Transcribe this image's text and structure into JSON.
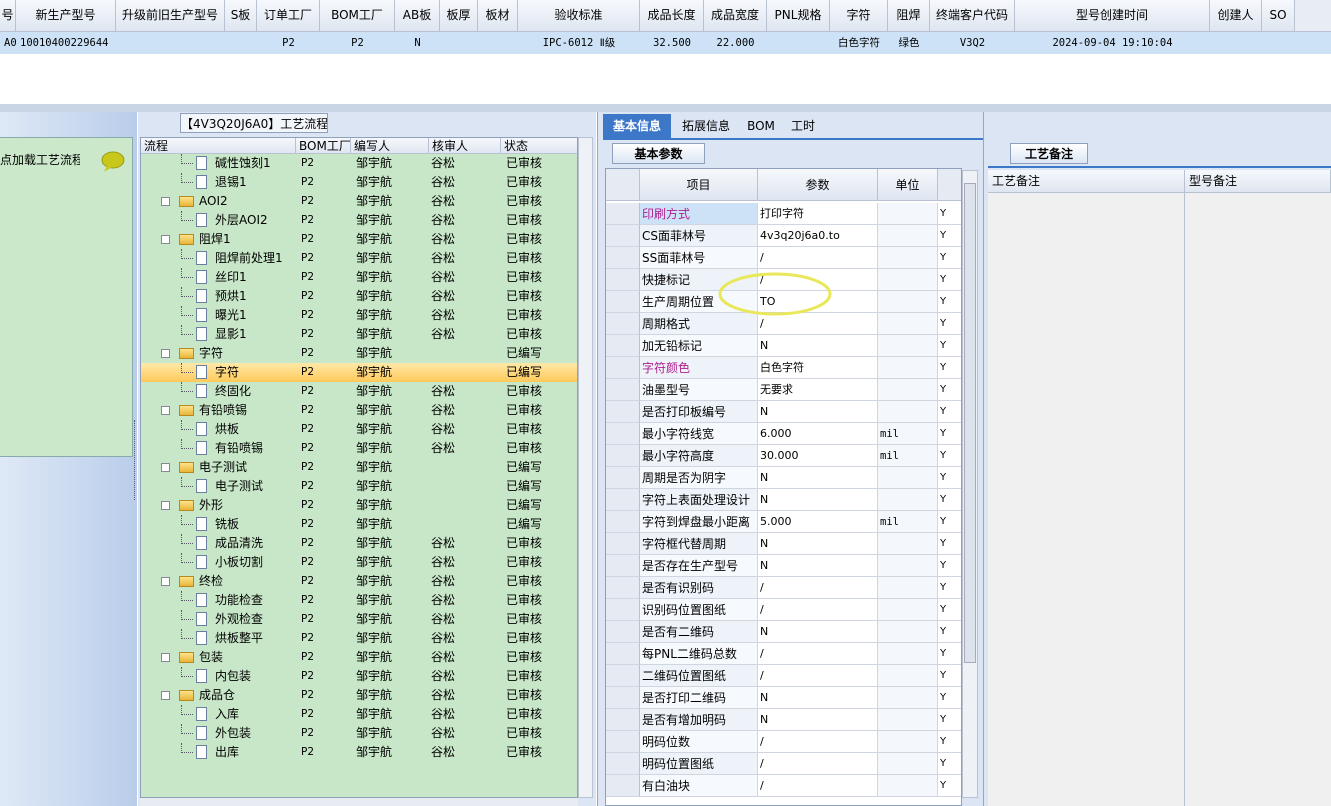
{
  "top_table": {
    "headers": [
      "号",
      "新生产型号",
      "升级前旧生产型号",
      "S板",
      "订单工厂",
      "BOM工厂",
      "AB板",
      "板厚",
      "板材",
      "验收标准",
      "成品长度",
      "成品宽度",
      "PNL规格",
      "字符",
      "阻焊",
      "终端客户代码",
      "型号创建时间",
      "创建人",
      "SO"
    ],
    "row": [
      "A0",
      "10010400229644",
      null,
      null,
      "P2",
      "P2",
      "N",
      null,
      null,
      "IPC-6012 Ⅱ级",
      "32.500",
      "22.000",
      null,
      "白色字符",
      "绿色",
      "V3Q2",
      "2024-09-04 19:10:04",
      null,
      null
    ]
  },
  "left_panel": {
    "title": "点加载工艺流程"
  },
  "process": {
    "title": "【4V3Q20J6A0】工艺流程",
    "headers": [
      "流程",
      "BOM工厂",
      "编写人",
      "核审人",
      "状态"
    ],
    "rows": [
      {
        "name": "碱性蚀刻1",
        "bom": "P2",
        "writer": "邹宇航",
        "reviewer": "谷松",
        "status": "已审核"
      },
      {
        "name": "退锡1",
        "bom": "P2",
        "writer": "邹宇航",
        "reviewer": "谷松",
        "status": "已审核"
      },
      {
        "name": "AOI2",
        "folder": true,
        "bom": "P2",
        "writer": "邹宇航",
        "reviewer": "谷松",
        "status": "已审核"
      },
      {
        "name": "外层AOI2",
        "bom": "P2",
        "writer": "邹宇航",
        "reviewer": "谷松",
        "status": "已审核"
      },
      {
        "name": "阻焊1",
        "folder": true,
        "bom": "P2",
        "writer": "邹宇航",
        "reviewer": "谷松",
        "status": "已审核"
      },
      {
        "name": "阻焊前处理1",
        "bom": "P2",
        "writer": "邹宇航",
        "reviewer": "谷松",
        "status": "已审核"
      },
      {
        "name": "丝印1",
        "bom": "P2",
        "writer": "邹宇航",
        "reviewer": "谷松",
        "status": "已审核"
      },
      {
        "name": "预烘1",
        "bom": "P2",
        "writer": "邹宇航",
        "reviewer": "谷松",
        "status": "已审核"
      },
      {
        "name": "曝光1",
        "bom": "P2",
        "writer": "邹宇航",
        "reviewer": "谷松",
        "status": "已审核"
      },
      {
        "name": "显影1",
        "bom": "P2",
        "writer": "邹宇航",
        "reviewer": "谷松",
        "status": "已审核"
      },
      {
        "name": "字符",
        "folder": true,
        "bom": "P2",
        "writer": "邹宇航",
        "status": "已编写"
      },
      {
        "name": "字符",
        "selected": true,
        "bom": "P2",
        "writer": "邹宇航",
        "status": "已编写"
      },
      {
        "name": "终固化",
        "bom": "P2",
        "writer": "邹宇航",
        "reviewer": "谷松",
        "status": "已审核"
      },
      {
        "name": "有铅喷锡",
        "folder": true,
        "bom": "P2",
        "writer": "邹宇航",
        "reviewer": "谷松",
        "status": "已审核"
      },
      {
        "name": "烘板",
        "bom": "P2",
        "writer": "邹宇航",
        "reviewer": "谷松",
        "status": "已审核"
      },
      {
        "name": "有铅喷锡",
        "bom": "P2",
        "writer": "邹宇航",
        "reviewer": "谷松",
        "status": "已审核"
      },
      {
        "name": "电子测试",
        "folder": true,
        "bom": "P2",
        "writer": "邹宇航",
        "status": "已编写"
      },
      {
        "name": "电子测试",
        "bom": "P2",
        "writer": "邹宇航",
        "status": "已编写"
      },
      {
        "name": "外形",
        "folder": true,
        "bom": "P2",
        "writer": "邹宇航",
        "status": "已编写"
      },
      {
        "name": "铣板",
        "bom": "P2",
        "writer": "邹宇航",
        "status": "已编写"
      },
      {
        "name": "成品清洗",
        "bom": "P2",
        "writer": "邹宇航",
        "reviewer": "谷松",
        "status": "已审核"
      },
      {
        "name": "小板切割",
        "bom": "P2",
        "writer": "邹宇航",
        "reviewer": "谷松",
        "status": "已审核"
      },
      {
        "name": "终检",
        "folder": true,
        "bom": "P2",
        "writer": "邹宇航",
        "reviewer": "谷松",
        "status": "已审核"
      },
      {
        "name": "功能检查",
        "bom": "P2",
        "writer": "邹宇航",
        "reviewer": "谷松",
        "status": "已审核"
      },
      {
        "name": "外观检查",
        "bom": "P2",
        "writer": "邹宇航",
        "reviewer": "谷松",
        "status": "已审核"
      },
      {
        "name": "烘板整平",
        "bom": "P2",
        "writer": "邹宇航",
        "reviewer": "谷松",
        "status": "已审核"
      },
      {
        "name": "包装",
        "folder": true,
        "bom": "P2",
        "writer": "邹宇航",
        "reviewer": "谷松",
        "status": "已审核"
      },
      {
        "name": "内包装",
        "bom": "P2",
        "writer": "邹宇航",
        "reviewer": "谷松",
        "status": "已审核"
      },
      {
        "name": "成品仓",
        "folder": true,
        "bom": "P2",
        "writer": "邹宇航",
        "reviewer": "谷松",
        "status": "已审核"
      },
      {
        "name": "入库",
        "bom": "P2",
        "writer": "邹宇航",
        "reviewer": "谷松",
        "status": "已审核"
      },
      {
        "name": "外包装",
        "bom": "P2",
        "writer": "邹宇航",
        "reviewer": "谷松",
        "status": "已审核"
      },
      {
        "name": "出库",
        "bom": "P2",
        "writer": "邹宇航",
        "reviewer": "谷松",
        "status": "已审核"
      }
    ]
  },
  "tabs": [
    "基本信息",
    "拓展信息",
    "BOM",
    "工时"
  ],
  "basic": {
    "tab": "基本参数",
    "headers": [
      "项目",
      "参数",
      "单位"
    ],
    "rows": [
      {
        "item": "印刷方式",
        "value": "打印字符",
        "flag": "Y",
        "color": "#b0208f"
      },
      {
        "item": "CS面菲林号",
        "value": "4v3q20j6a0.to",
        "flag": "Y"
      },
      {
        "item": "SS面菲林号",
        "value": "/",
        "flag": "Y"
      },
      {
        "item": "快捷标记",
        "value": "/",
        "flag": "Y"
      },
      {
        "item": "生产周期位置",
        "value": "TO",
        "flag": "Y"
      },
      {
        "item": "周期格式",
        "value": "/",
        "flag": "Y"
      },
      {
        "item": "加无铅标记",
        "value": "N",
        "flag": "Y"
      },
      {
        "item": "字符颜色",
        "value": "白色字符",
        "flag": "Y",
        "color": "#b0208f"
      },
      {
        "item": "油墨型号",
        "value": "无要求",
        "flag": "Y"
      },
      {
        "item": "是否打印板编号",
        "value": "N",
        "flag": "Y"
      },
      {
        "item": "最小字符线宽",
        "value": "6.000",
        "unit": "mil",
        "flag": "Y"
      },
      {
        "item": "最小字符高度",
        "value": "30.000",
        "unit": "mil",
        "flag": "Y"
      },
      {
        "item": "周期是否为阴字",
        "value": "N",
        "flag": "Y"
      },
      {
        "item": "字符上表面处理设计",
        "value": "N",
        "flag": "Y"
      },
      {
        "item": "字符到焊盘最小距离",
        "value": "5.000",
        "unit": "mil",
        "flag": "Y"
      },
      {
        "item": "字符框代替周期",
        "value": "N",
        "flag": "Y"
      },
      {
        "item": "是否存在生产型号",
        "value": "N",
        "flag": "Y"
      },
      {
        "item": "是否有识别码",
        "value": "/",
        "flag": "Y"
      },
      {
        "item": "识别码位置图纸",
        "value": "/",
        "flag": "Y"
      },
      {
        "item": "是否有二维码",
        "value": "N",
        "flag": "Y"
      },
      {
        "item": "每PNL二维码总数",
        "value": "/",
        "flag": "Y"
      },
      {
        "item": "二维码位置图纸",
        "value": "/",
        "flag": "Y"
      },
      {
        "item": "是否打印二维码",
        "value": "N",
        "flag": "Y"
      },
      {
        "item": "是否有增加明码",
        "value": "N",
        "flag": "Y"
      },
      {
        "item": "明码位数",
        "value": "/",
        "flag": "Y"
      },
      {
        "item": "明码位置图纸",
        "value": "/",
        "flag": "Y"
      },
      {
        "item": "有白油块",
        "value": "/",
        "flag": "Y"
      }
    ]
  },
  "remarks": {
    "tab": "工艺备注",
    "headers": [
      "工艺备注",
      "型号备注"
    ]
  }
}
